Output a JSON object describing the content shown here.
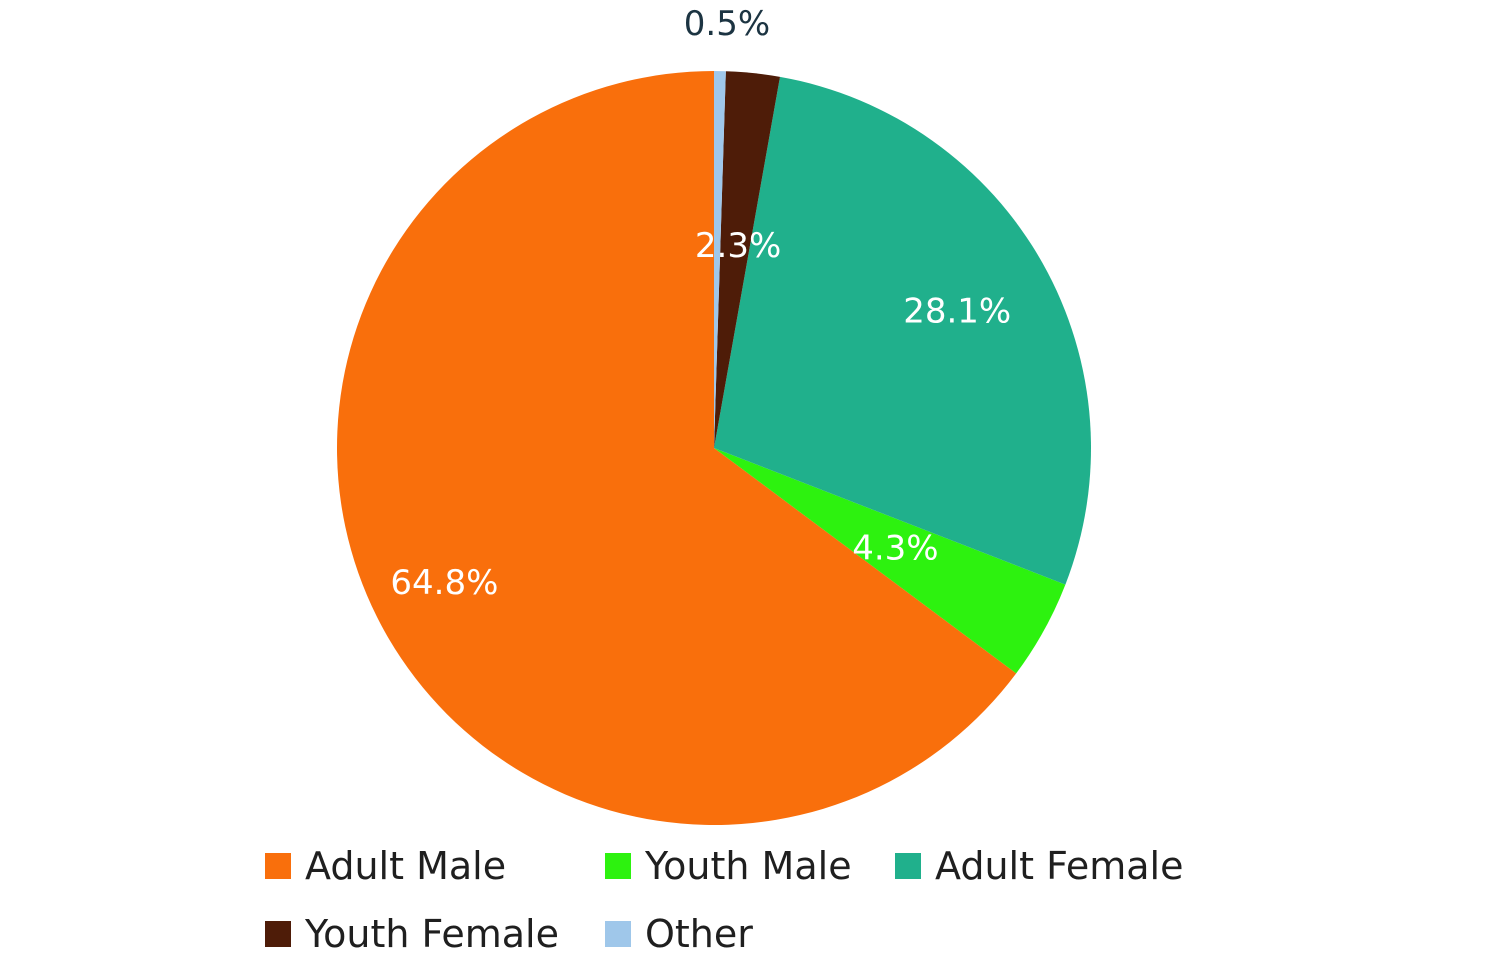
{
  "chart_data": {
    "type": "pie",
    "categories": [
      "Adult Male",
      "Youth Male",
      "Adult Female",
      "Youth Female",
      "Other"
    ],
    "values": [
      64.8,
      4.3,
      28.1,
      2.3,
      0.5
    ],
    "labels": [
      "64.8%",
      "4.3%",
      "28.1%",
      "2.3%",
      "0.5%"
    ],
    "colors": [
      "#f96f0c",
      "#2df20f",
      "#20b08c",
      "#4e1c08",
      "#9fc7ea"
    ],
    "direction": "counterclockwise",
    "legend": "bottom",
    "label_colors": {
      "inside": "#ffffff",
      "outside": "#1c3442"
    }
  }
}
